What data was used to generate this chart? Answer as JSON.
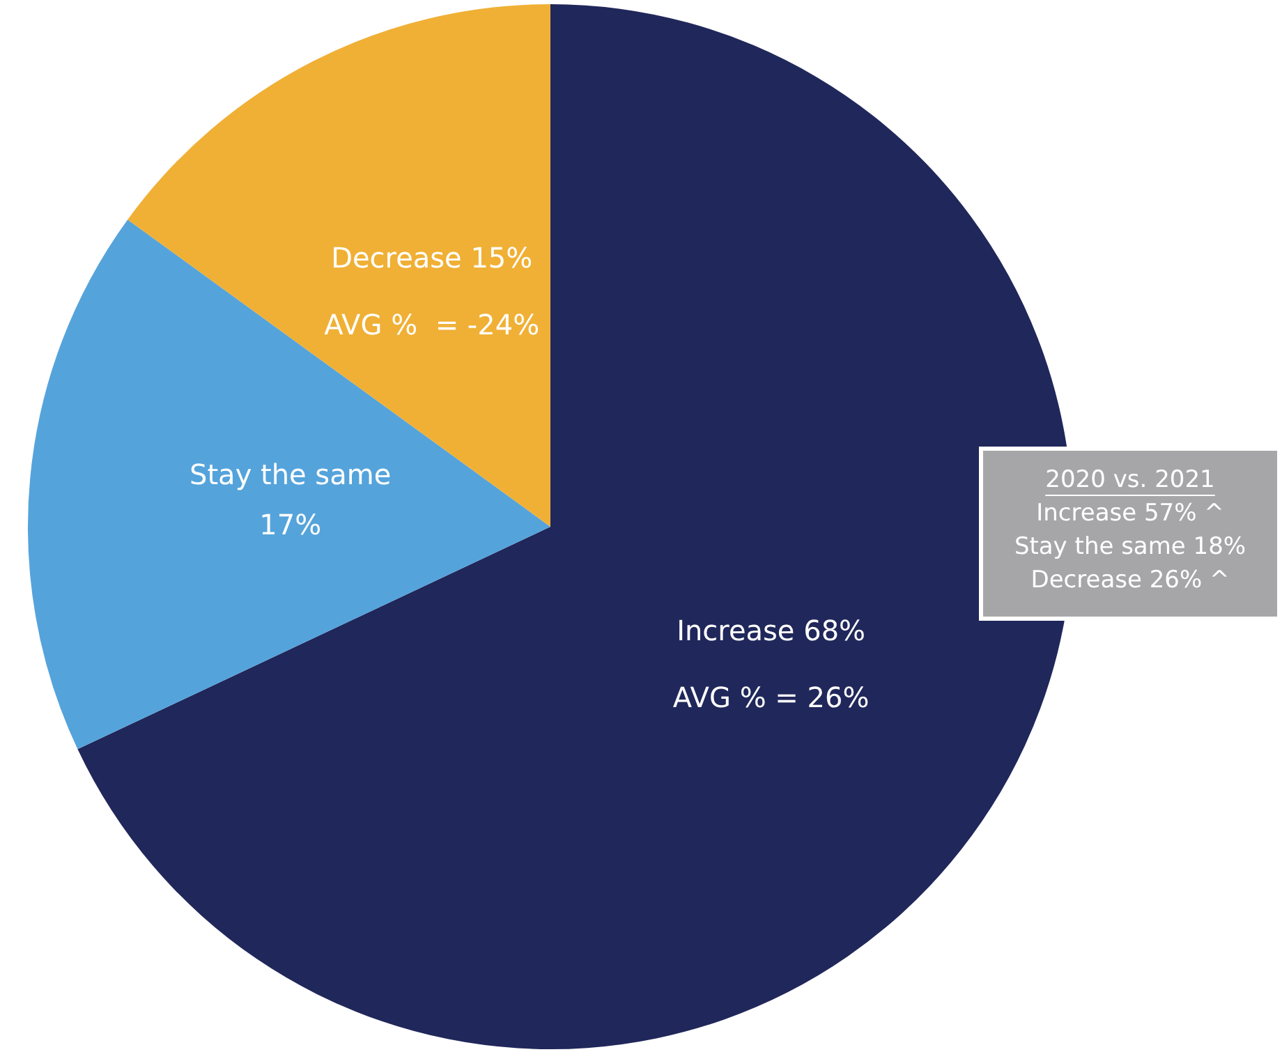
{
  "chart_data": {
    "type": "pie",
    "categories": [
      "Increase",
      "Stay the same",
      "Decrease"
    ],
    "values": [
      68,
      17,
      15
    ],
    "colors": [
      "#20275a",
      "#55a3db",
      "#f0b035"
    ],
    "value_labels": [
      "68%",
      "17%",
      "15%"
    ],
    "annotations": [
      {
        "text": "AVG % = 26%",
        "x": "Increase"
      },
      {
        "text": "AVG %  = -24%",
        "x": "Decrease"
      },
      "2020 vs. 2021",
      "Increase 57% ^",
      "Stay the same 18%",
      "Decrease 26% ^"
    ]
  }
}
